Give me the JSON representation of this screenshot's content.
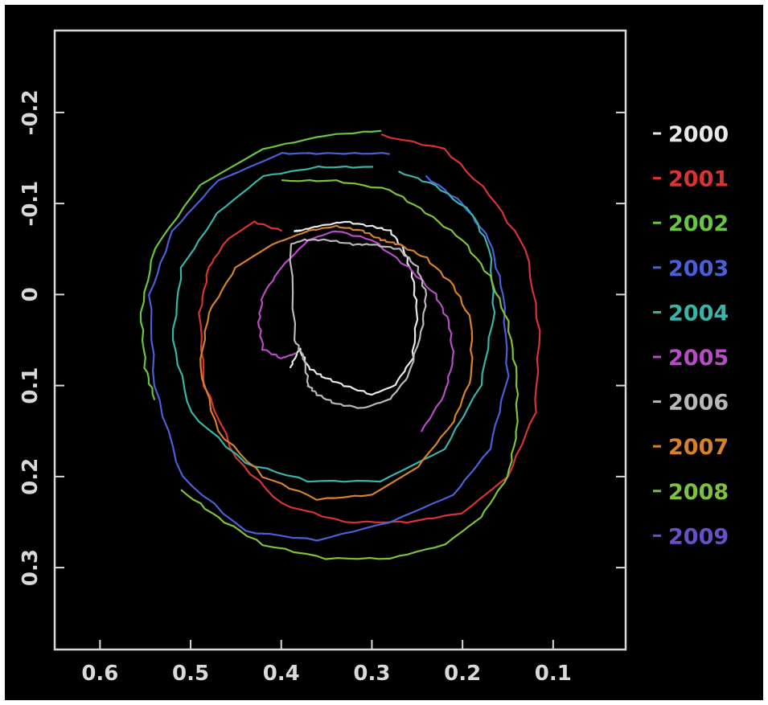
{
  "chart_data": {
    "type": "line",
    "title": "",
    "xlabel": "",
    "ylabel": "",
    "xlim": [
      0.65,
      0.02
    ],
    "ylim": [
      -0.29,
      0.39
    ],
    "x_inverted": true,
    "y_inverted": true,
    "xticks": [
      0.6,
      0.5,
      0.4,
      0.3,
      0.2,
      0.1
    ],
    "xtick_labels": [
      "0.6",
      "0.5",
      "0.4",
      "0.3",
      "0.2",
      "0.1"
    ],
    "yticks": [
      -0.2,
      -0.1,
      0,
      0.1,
      0.2,
      0.3
    ],
    "ytick_labels": [
      "-0.2",
      "-0.1",
      "0",
      "0.1",
      "0.2",
      "0.3"
    ],
    "grid": false,
    "legend_position": "right",
    "background": "#000000",
    "axis_color": "#d9d9d9",
    "series": [
      {
        "name": "2000",
        "color": "#e8e8e8",
        "x": [
          0.39,
          0.38,
          0.37,
          0.355,
          0.33,
          0.3,
          0.275,
          0.255,
          0.25,
          0.255,
          0.265,
          0.28,
          0.3,
          0.33,
          0.36,
          0.38,
          0.385
        ],
        "y": [
          0.08,
          0.06,
          0.08,
          0.09,
          0.1,
          0.11,
          0.1,
          0.07,
          0.02,
          -0.02,
          -0.05,
          -0.07,
          -0.075,
          -0.08,
          -0.075,
          -0.07,
          -0.07
        ]
      },
      {
        "name": "2001",
        "color": "#d93333",
        "x": [
          0.29,
          0.22,
          0.17,
          0.13,
          0.115,
          0.12,
          0.15,
          0.2,
          0.26,
          0.33,
          0.4,
          0.45,
          0.485,
          0.49,
          0.48,
          0.46,
          0.43,
          0.4
        ],
        "y": [
          -0.175,
          -0.16,
          -0.11,
          -0.05,
          0.04,
          0.13,
          0.2,
          0.24,
          0.25,
          0.25,
          0.23,
          0.18,
          0.1,
          0.02,
          -0.03,
          -0.06,
          -0.08,
          -0.07
        ]
      },
      {
        "name": "2002",
        "color": "#6ac445",
        "x": [
          0.29,
          0.35,
          0.42,
          0.49,
          0.54,
          0.555,
          0.55,
          0.54
        ],
        "y": [
          -0.18,
          -0.175,
          -0.16,
          -0.12,
          -0.05,
          0.02,
          0.08,
          0.115
        ]
      },
      {
        "name": "2003",
        "color": "#4b5fd6",
        "x": [
          0.28,
          0.34,
          0.4,
          0.47,
          0.52,
          0.545,
          0.54,
          0.51,
          0.44,
          0.36,
          0.28,
          0.21,
          0.17,
          0.15,
          0.155,
          0.17,
          0.2,
          0.24
        ],
        "y": [
          -0.155,
          -0.155,
          -0.155,
          -0.125,
          -0.07,
          0.0,
          0.1,
          0.2,
          0.26,
          0.27,
          0.25,
          0.22,
          0.17,
          0.09,
          0.0,
          -0.06,
          -0.1,
          -0.13
        ]
      },
      {
        "name": "2004",
        "color": "#3ab4a8",
        "x": [
          0.3,
          0.36,
          0.42,
          0.47,
          0.51,
          0.52,
          0.5,
          0.44,
          0.37,
          0.29,
          0.22,
          0.18,
          0.165,
          0.17,
          0.19,
          0.23,
          0.27
        ],
        "y": [
          -0.14,
          -0.14,
          -0.13,
          -0.09,
          -0.03,
          0.05,
          0.13,
          0.185,
          0.205,
          0.205,
          0.17,
          0.1,
          0.02,
          -0.05,
          -0.09,
          -0.12,
          -0.135
        ]
      },
      {
        "name": "2005",
        "color": "#b84cc6",
        "x": [
          0.385,
          0.4,
          0.42,
          0.425,
          0.42,
          0.4,
          0.37,
          0.34,
          0.3,
          0.26,
          0.23,
          0.215,
          0.21,
          0.22,
          0.245
        ],
        "y": [
          0.065,
          0.07,
          0.06,
          0.03,
          0.0,
          -0.03,
          -0.06,
          -0.07,
          -0.06,
          -0.03,
          0.0,
          0.03,
          0.07,
          0.11,
          0.15
        ]
      },
      {
        "name": "2006",
        "color": "#b8b8b8",
        "x": [
          0.37,
          0.36,
          0.34,
          0.31,
          0.28,
          0.26,
          0.245,
          0.24,
          0.25,
          0.27,
          0.3,
          0.32,
          0.35,
          0.375,
          0.39,
          0.385,
          0.375,
          0.37
        ],
        "y": [
          0.1,
          0.11,
          0.12,
          0.125,
          0.115,
          0.09,
          0.04,
          0.0,
          -0.03,
          -0.05,
          -0.055,
          -0.055,
          -0.06,
          -0.06,
          -0.055,
          0.05,
          0.07,
          0.1
        ]
      },
      {
        "name": "2007",
        "color": "#d5822a",
        "x": [
          0.29,
          0.27,
          0.24,
          0.21,
          0.19,
          0.19,
          0.21,
          0.25,
          0.3,
          0.36,
          0.42,
          0.47,
          0.49,
          0.48,
          0.45,
          0.41,
          0.37,
          0.34,
          0.31,
          0.29
        ],
        "y": [
          -0.06,
          -0.055,
          -0.04,
          -0.01,
          0.03,
          0.09,
          0.14,
          0.19,
          0.22,
          0.225,
          0.2,
          0.15,
          0.08,
          0.02,
          -0.03,
          -0.055,
          -0.07,
          -0.075,
          -0.07,
          -0.06
        ]
      },
      {
        "name": "2008",
        "color": "#7ec23c",
        "x": [
          0.4,
          0.34,
          0.28,
          0.24,
          0.2,
          0.17,
          0.15,
          0.14,
          0.14,
          0.15,
          0.18,
          0.22,
          0.28,
          0.35,
          0.42,
          0.47,
          0.51
        ],
        "y": [
          -0.125,
          -0.125,
          -0.115,
          -0.09,
          -0.06,
          -0.02,
          0.03,
          0.09,
          0.15,
          0.2,
          0.245,
          0.275,
          0.29,
          0.29,
          0.275,
          0.245,
          0.215
        ]
      },
      {
        "name": "2009",
        "color": "#6b4fc9",
        "x": [],
        "y": []
      }
    ]
  },
  "legend": {
    "items": [
      {
        "label": "2000",
        "color": "#e8e8e8"
      },
      {
        "label": "2001",
        "color": "#d93333"
      },
      {
        "label": "2002",
        "color": "#6ac445"
      },
      {
        "label": "2003",
        "color": "#4b5fd6"
      },
      {
        "label": "2004",
        "color": "#3ab4a8"
      },
      {
        "label": "2005",
        "color": "#b84cc6"
      },
      {
        "label": "2006",
        "color": "#b8b8b8"
      },
      {
        "label": "2007",
        "color": "#d5822a"
      },
      {
        "label": "2008",
        "color": "#7ec23c"
      },
      {
        "label": "2009",
        "color": "#6b4fc9"
      }
    ]
  }
}
